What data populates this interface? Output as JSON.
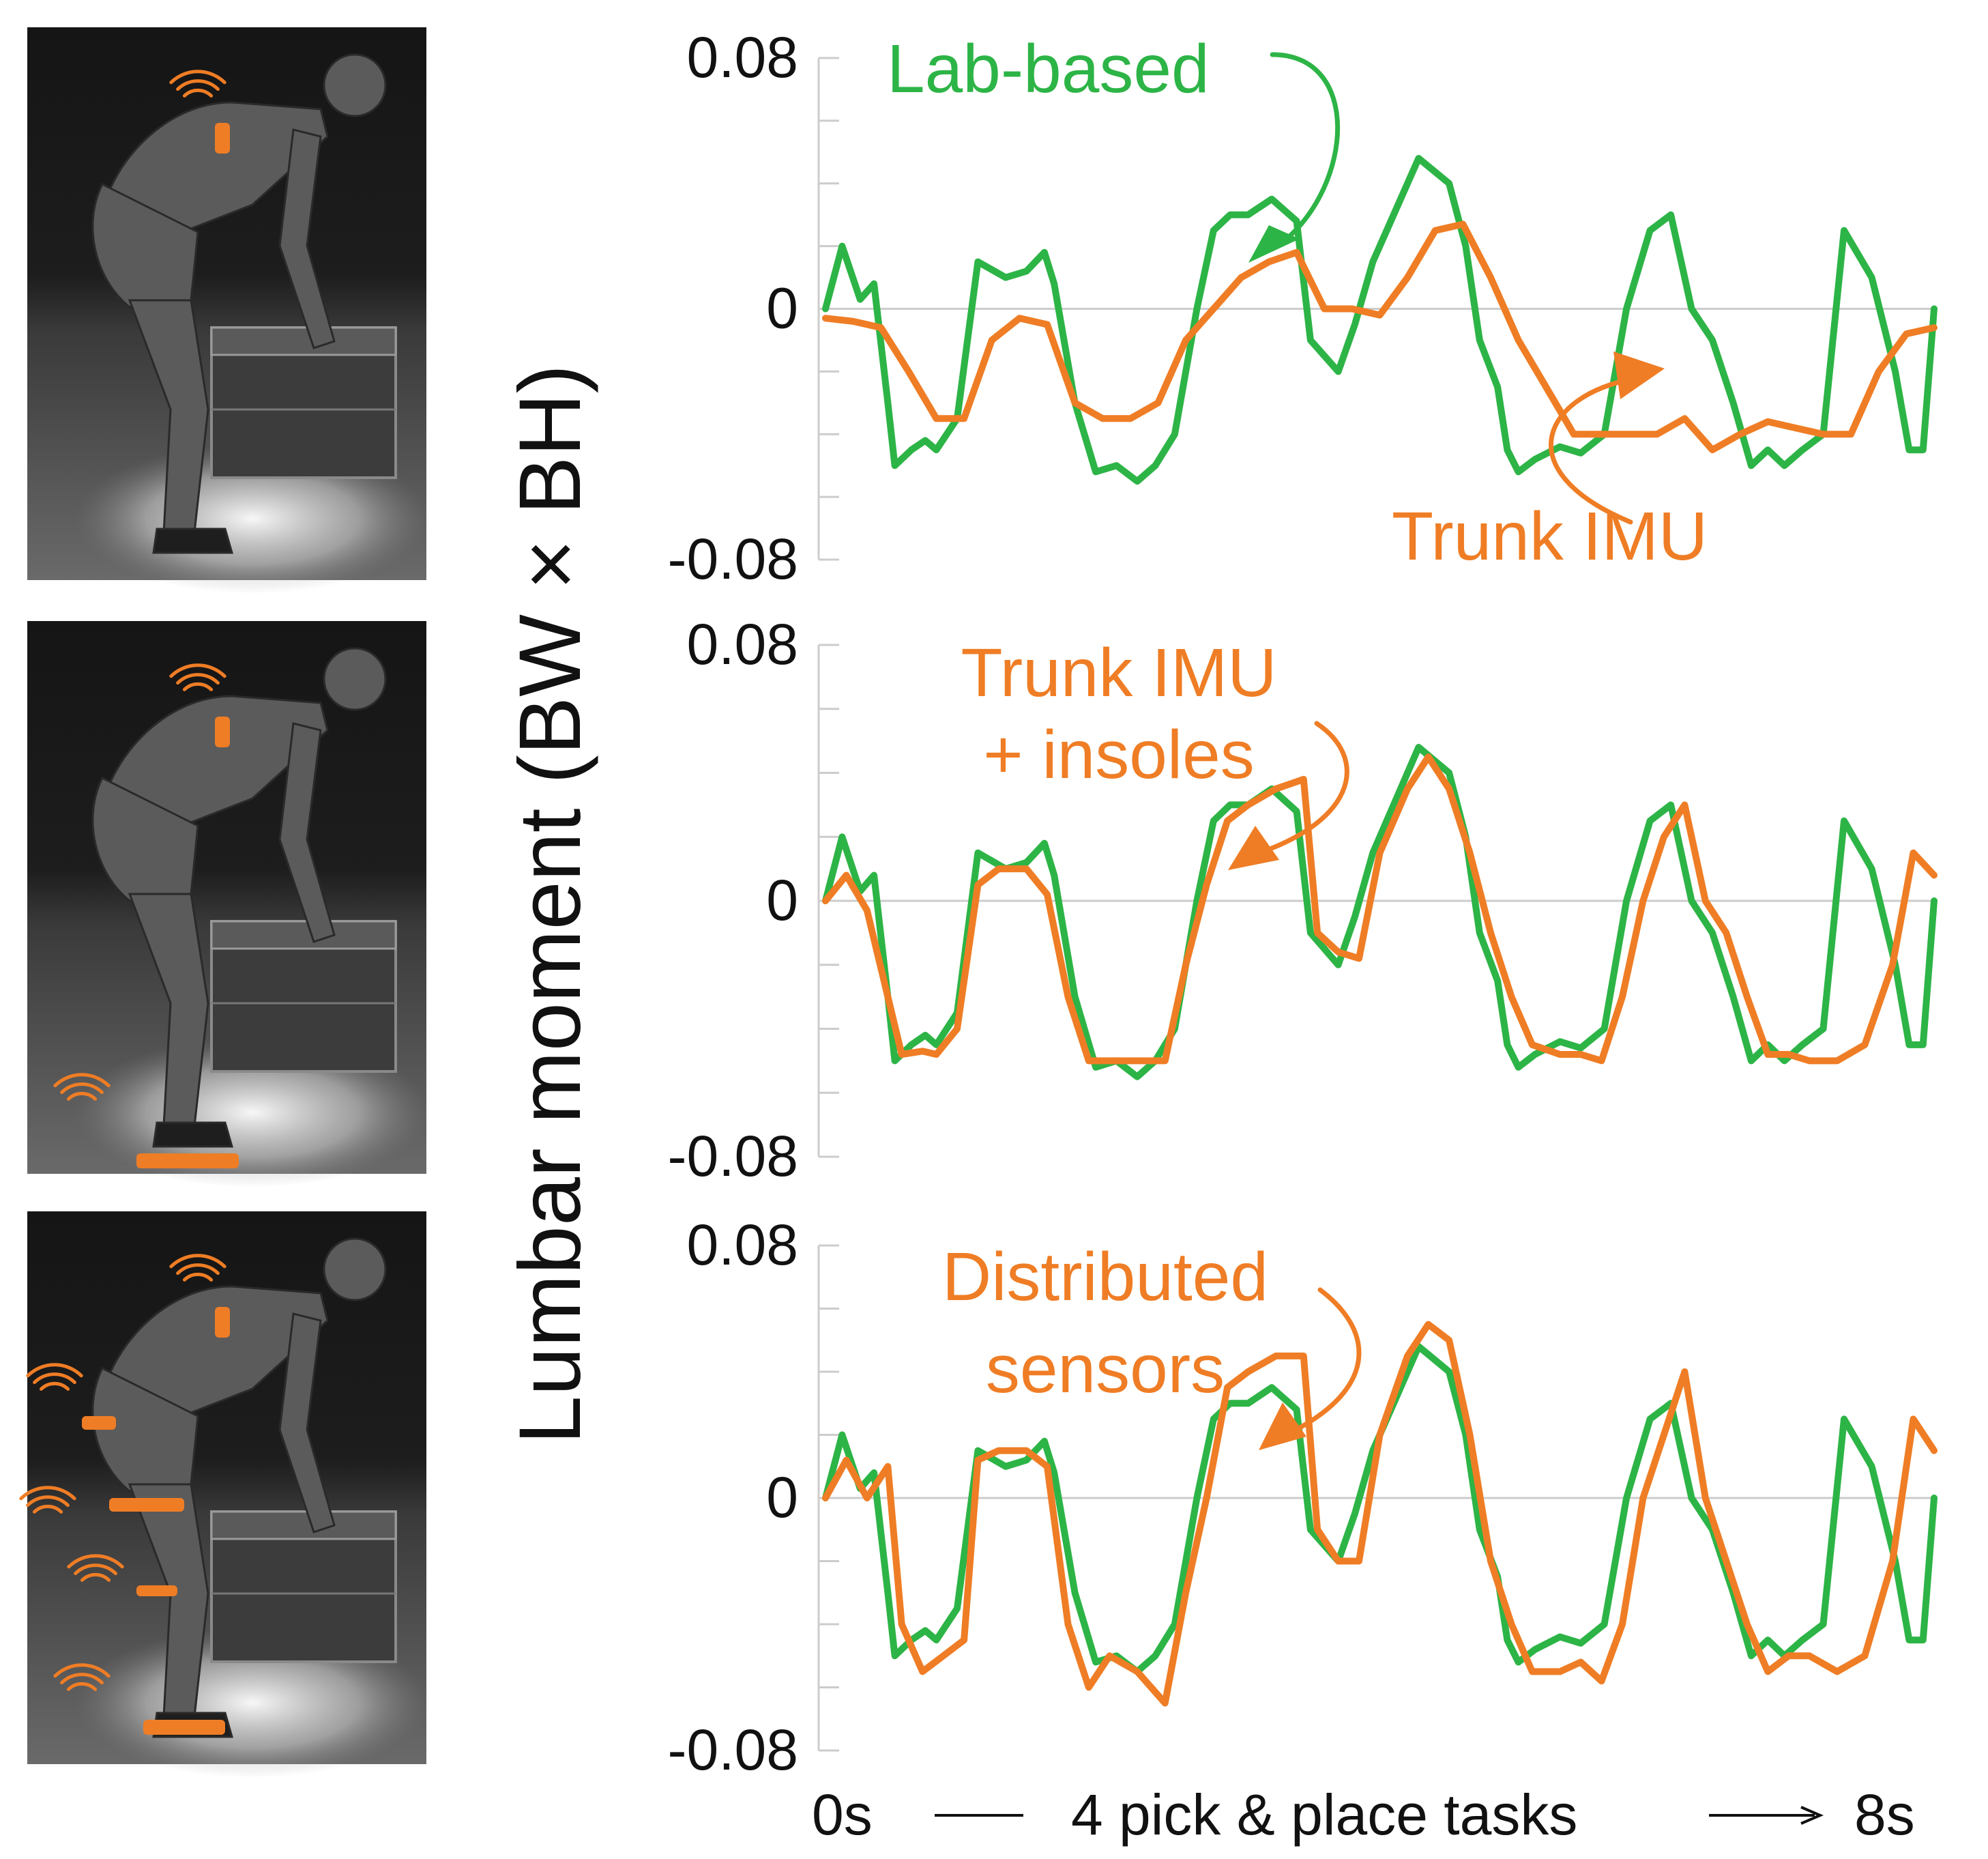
{
  "colors": {
    "lab": "#2db446",
    "estimate": "#ef7d25",
    "axis": "#cccccc",
    "text": "#111111"
  },
  "chart_data": {
    "type": "line",
    "ylabel": "Lumbar moment (BW × BH)",
    "x_axis": {
      "start_label": "0s",
      "middle_label": "4 pick & place tasks",
      "end_label": "8s",
      "range": [
        0,
        8
      ]
    },
    "ylim": [
      -0.08,
      0.08
    ],
    "y_ticks": [
      "0.08",
      "0",
      "-0.08"
    ],
    "panels": [
      {
        "name": "trunk-imu",
        "images": [
          {
            "depicts": "person lifting a box with a trunk IMU",
            "sensors": [
              "trunk"
            ]
          }
        ],
        "annotations": [
          {
            "text_lines": [
              "Lab-based"
            ],
            "series": "Lab-based"
          },
          {
            "text_lines": [
              "Trunk IMU"
            ],
            "series": "Trunk IMU"
          }
        ],
        "series": [
          {
            "name": "Lab-based",
            "color_key": "lab",
            "x": [
              0,
              0.12,
              0.25,
              0.35,
              0.45,
              0.5,
              0.62,
              0.72,
              0.8,
              0.95,
              1.1,
              1.3,
              1.45,
              1.58,
              1.65,
              1.8,
              1.95,
              2.1,
              2.25,
              2.38,
              2.52,
              2.68,
              2.8,
              2.92,
              3.05,
              3.22,
              3.4,
              3.5,
              3.7,
              3.82,
              3.95,
              4.1,
              4.28,
              4.5,
              4.62,
              4.72,
              4.85,
              4.92,
              5.0,
              5.12,
              5.3,
              5.45,
              5.62,
              5.78,
              5.95,
              6.1,
              6.25,
              6.4,
              6.55,
              6.68,
              6.8,
              6.92,
              7.05,
              7.2,
              7.35,
              7.55,
              7.72,
              7.82,
              7.92,
              8.0
            ],
            "y": [
              0.0,
              0.02,
              0.003,
              0.008,
              -0.03,
              -0.05,
              -0.045,
              -0.042,
              -0.045,
              -0.035,
              0.015,
              0.01,
              0.012,
              0.018,
              0.008,
              -0.03,
              -0.052,
              -0.05,
              -0.055,
              -0.05,
              -0.04,
              0.0,
              0.025,
              0.03,
              0.03,
              0.035,
              0.028,
              -0.01,
              -0.02,
              -0.005,
              0.015,
              0.03,
              0.048,
              0.04,
              0.02,
              -0.01,
              -0.025,
              -0.045,
              -0.052,
              -0.048,
              -0.044,
              -0.046,
              -0.04,
              0.0,
              0.025,
              0.03,
              0.0,
              -0.01,
              -0.03,
              -0.05,
              -0.045,
              -0.05,
              -0.045,
              -0.04,
              0.025,
              0.01,
              -0.02,
              -0.045,
              -0.045,
              0.0
            ]
          },
          {
            "name": "Trunk IMU",
            "color_key": "estimate",
            "x": [
              0,
              0.2,
              0.4,
              0.6,
              0.8,
              1.0,
              1.2,
              1.4,
              1.6,
              1.8,
              2.0,
              2.2,
              2.4,
              2.6,
              2.8,
              3.0,
              3.2,
              3.4,
              3.6,
              3.8,
              4.0,
              4.2,
              4.4,
              4.6,
              4.8,
              5.0,
              5.2,
              5.4,
              5.6,
              5.8,
              6.0,
              6.2,
              6.4,
              6.6,
              6.8,
              7.0,
              7.2,
              7.4,
              7.6,
              7.8,
              8.0
            ],
            "y": [
              -0.003,
              -0.004,
              -0.006,
              -0.02,
              -0.035,
              -0.035,
              -0.01,
              -0.003,
              -0.005,
              -0.03,
              -0.035,
              -0.035,
              -0.03,
              -0.01,
              0.0,
              0.01,
              0.015,
              0.018,
              0.0,
              0.0,
              -0.002,
              0.01,
              0.025,
              0.027,
              0.01,
              -0.01,
              -0.025,
              -0.04,
              -0.04,
              -0.04,
              -0.04,
              -0.035,
              -0.045,
              -0.04,
              -0.036,
              -0.038,
              -0.04,
              -0.04,
              -0.02,
              -0.008,
              -0.006
            ]
          }
        ]
      },
      {
        "name": "trunk-imu-insoles",
        "images": [
          {
            "depicts": "person lifting a box with a trunk IMU and insoles",
            "sensors": [
              "trunk",
              "insoles"
            ]
          }
        ],
        "annotations": [
          {
            "text_lines": [
              "Trunk IMU",
              "+ insoles"
            ],
            "series": "Trunk IMU + insoles"
          }
        ],
        "series": [
          {
            "name": "Lab-based",
            "color_key": "lab",
            "x": [
              0,
              0.12,
              0.25,
              0.35,
              0.45,
              0.5,
              0.62,
              0.72,
              0.8,
              0.95,
              1.1,
              1.3,
              1.45,
              1.58,
              1.65,
              1.8,
              1.95,
              2.1,
              2.25,
              2.38,
              2.52,
              2.68,
              2.8,
              2.92,
              3.05,
              3.22,
              3.4,
              3.5,
              3.7,
              3.82,
              3.95,
              4.1,
              4.28,
              4.5,
              4.62,
              4.72,
              4.85,
              4.92,
              5.0,
              5.12,
              5.3,
              5.45,
              5.62,
              5.78,
              5.95,
              6.1,
              6.25,
              6.4,
              6.55,
              6.68,
              6.8,
              6.92,
              7.05,
              7.2,
              7.35,
              7.55,
              7.72,
              7.82,
              7.92,
              8.0
            ],
            "y": [
              0.0,
              0.02,
              0.003,
              0.008,
              -0.03,
              -0.05,
              -0.045,
              -0.042,
              -0.045,
              -0.035,
              0.015,
              0.01,
              0.012,
              0.018,
              0.008,
              -0.03,
              -0.052,
              -0.05,
              -0.055,
              -0.05,
              -0.04,
              0.0,
              0.025,
              0.03,
              0.03,
              0.035,
              0.028,
              -0.01,
              -0.02,
              -0.005,
              0.015,
              0.03,
              0.048,
              0.04,
              0.02,
              -0.01,
              -0.025,
              -0.045,
              -0.052,
              -0.048,
              -0.044,
              -0.046,
              -0.04,
              0.0,
              0.025,
              0.03,
              0.0,
              -0.01,
              -0.03,
              -0.05,
              -0.045,
              -0.05,
              -0.045,
              -0.04,
              0.025,
              0.01,
              -0.02,
              -0.045,
              -0.045,
              0.0
            ]
          },
          {
            "name": "Trunk IMU + insoles",
            "color_key": "estimate",
            "x": [
              0,
              0.15,
              0.3,
              0.45,
              0.55,
              0.7,
              0.8,
              0.95,
              1.1,
              1.25,
              1.45,
              1.6,
              1.75,
              1.9,
              2.05,
              2.25,
              2.45,
              2.6,
              2.75,
              2.9,
              3.05,
              3.25,
              3.45,
              3.55,
              3.7,
              3.85,
              4.0,
              4.2,
              4.35,
              4.5,
              4.65,
              4.8,
              4.95,
              5.1,
              5.3,
              5.45,
              5.6,
              5.75,
              5.9,
              6.05,
              6.2,
              6.35,
              6.5,
              6.65,
              6.8,
              6.95,
              7.1,
              7.3,
              7.5,
              7.7,
              7.85,
              8.0
            ],
            "y": [
              0.0,
              0.008,
              -0.003,
              -0.03,
              -0.048,
              -0.047,
              -0.048,
              -0.04,
              0.005,
              0.01,
              0.01,
              0.002,
              -0.03,
              -0.05,
              -0.05,
              -0.05,
              -0.05,
              -0.02,
              0.005,
              0.025,
              0.03,
              0.035,
              0.038,
              -0.01,
              -0.016,
              -0.018,
              0.015,
              0.035,
              0.045,
              0.035,
              0.015,
              -0.01,
              -0.03,
              -0.045,
              -0.048,
              -0.048,
              -0.05,
              -0.03,
              0.0,
              0.02,
              0.03,
              0.0,
              -0.01,
              -0.03,
              -0.048,
              -0.048,
              -0.05,
              -0.05,
              -0.045,
              -0.02,
              0.015,
              0.008
            ]
          }
        ]
      },
      {
        "name": "distributed-sensors",
        "images": [
          {
            "depicts": "person lifting a box with distributed body sensors",
            "sensors": [
              "trunk",
              "pelvis",
              "thigh",
              "shank",
              "foot"
            ]
          }
        ],
        "annotations": [
          {
            "text_lines": [
              "Distributed",
              "sensors"
            ],
            "series": "Distributed sensors"
          }
        ],
        "series": [
          {
            "name": "Lab-based",
            "color_key": "lab",
            "x": [
              0,
              0.12,
              0.25,
              0.35,
              0.45,
              0.5,
              0.62,
              0.72,
              0.8,
              0.95,
              1.1,
              1.3,
              1.45,
              1.58,
              1.65,
              1.8,
              1.95,
              2.1,
              2.25,
              2.38,
              2.52,
              2.68,
              2.8,
              2.92,
              3.05,
              3.22,
              3.4,
              3.5,
              3.7,
              3.82,
              3.95,
              4.1,
              4.28,
              4.5,
              4.62,
              4.72,
              4.85,
              4.92,
              5.0,
              5.12,
              5.3,
              5.45,
              5.62,
              5.78,
              5.95,
              6.1,
              6.25,
              6.4,
              6.55,
              6.68,
              6.8,
              6.92,
              7.05,
              7.2,
              7.35,
              7.55,
              7.72,
              7.82,
              7.92,
              8.0
            ],
            "y": [
              0.0,
              0.02,
              0.003,
              0.008,
              -0.03,
              -0.05,
              -0.045,
              -0.042,
              -0.045,
              -0.035,
              0.015,
              0.01,
              0.012,
              0.018,
              0.008,
              -0.03,
              -0.052,
              -0.05,
              -0.055,
              -0.05,
              -0.04,
              0.0,
              0.025,
              0.03,
              0.03,
              0.035,
              0.028,
              -0.01,
              -0.02,
              -0.005,
              0.015,
              0.03,
              0.048,
              0.04,
              0.02,
              -0.01,
              -0.025,
              -0.045,
              -0.052,
              -0.048,
              -0.044,
              -0.046,
              -0.04,
              0.0,
              0.025,
              0.03,
              0.0,
              -0.01,
              -0.03,
              -0.05,
              -0.045,
              -0.05,
              -0.045,
              -0.04,
              0.025,
              0.01,
              -0.02,
              -0.045,
              -0.045,
              0.0
            ]
          },
          {
            "name": "Distributed sensors",
            "color_key": "estimate",
            "x": [
              0,
              0.15,
              0.3,
              0.45,
              0.55,
              0.7,
              0.85,
              1.0,
              1.1,
              1.25,
              1.45,
              1.6,
              1.75,
              1.9,
              2.05,
              2.25,
              2.45,
              2.6,
              2.75,
              2.9,
              3.05,
              3.25,
              3.45,
              3.55,
              3.7,
              3.85,
              4.0,
              4.2,
              4.35,
              4.5,
              4.65,
              4.8,
              4.95,
              5.1,
              5.3,
              5.45,
              5.6,
              5.75,
              5.9,
              6.05,
              6.2,
              6.35,
              6.5,
              6.65,
              6.8,
              6.95,
              7.1,
              7.3,
              7.5,
              7.7,
              7.85,
              8.0
            ],
            "y": [
              0.0,
              0.012,
              0.0,
              0.01,
              -0.04,
              -0.055,
              -0.05,
              -0.045,
              0.012,
              0.015,
              0.015,
              0.01,
              -0.04,
              -0.06,
              -0.05,
              -0.055,
              -0.065,
              -0.03,
              0.0,
              0.035,
              0.04,
              0.045,
              0.045,
              -0.01,
              -0.02,
              -0.02,
              0.02,
              0.045,
              0.055,
              0.05,
              0.02,
              -0.02,
              -0.04,
              -0.055,
              -0.055,
              -0.052,
              -0.058,
              -0.04,
              0.0,
              0.02,
              0.04,
              0.0,
              -0.02,
              -0.04,
              -0.055,
              -0.05,
              -0.05,
              -0.055,
              -0.05,
              -0.02,
              0.025,
              0.015
            ]
          }
        ]
      }
    ]
  }
}
